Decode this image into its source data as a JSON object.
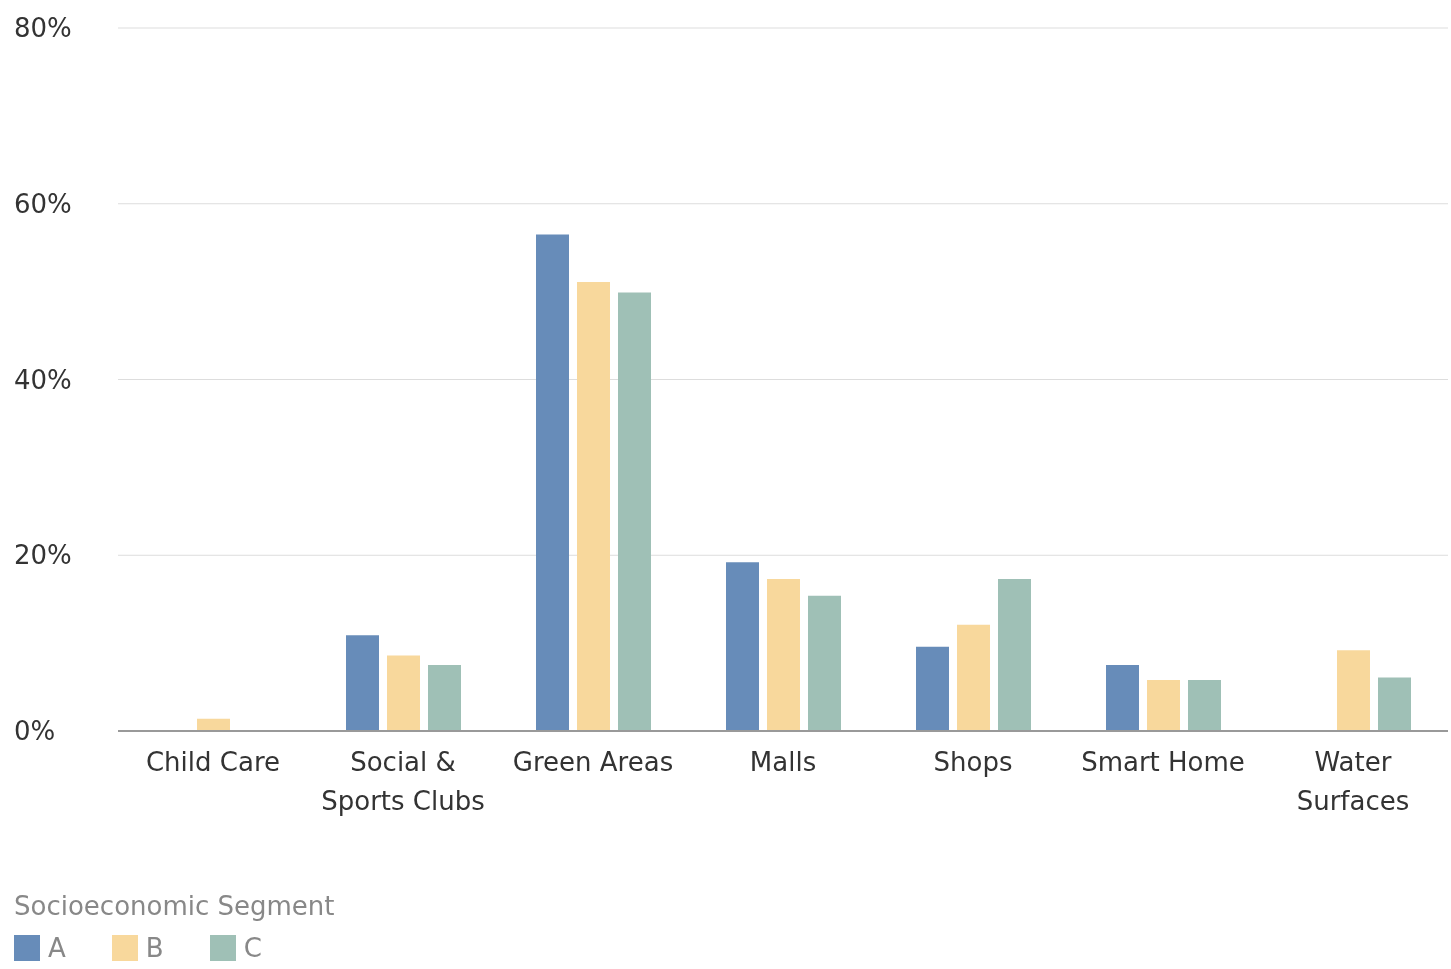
{
  "chart_data": {
    "type": "bar",
    "categories": [
      "Child Care",
      "Social & Sports Clubs",
      "Green Areas",
      "Malls",
      "Shops",
      "Smart Home",
      "Water Surfaces"
    ],
    "series": [
      {
        "name": "A",
        "color": "#678cb9",
        "values": [
          null,
          10.9,
          56.5,
          19.2,
          9.6,
          7.5,
          null
        ]
      },
      {
        "name": "B",
        "color": "#f8d89c",
        "values": [
          1.4,
          8.6,
          51.1,
          17.3,
          12.1,
          5.8,
          9.2
        ]
      },
      {
        "name": "C",
        "color": "#9fc0b6",
        "values": [
          null,
          7.5,
          49.9,
          15.4,
          17.3,
          5.8,
          6.1
        ]
      }
    ],
    "ylim": [
      0,
      80
    ],
    "yticks": [
      {
        "value": 0,
        "label": "0%"
      },
      {
        "value": 20,
        "label": "20%"
      },
      {
        "value": 40,
        "label": "40%"
      },
      {
        "value": 60,
        "label": "60%"
      },
      {
        "value": 80,
        "label": "80%"
      }
    ],
    "grid": "y",
    "legend": "bottom left",
    "legend_title": "Socioeconomic Segment"
  }
}
